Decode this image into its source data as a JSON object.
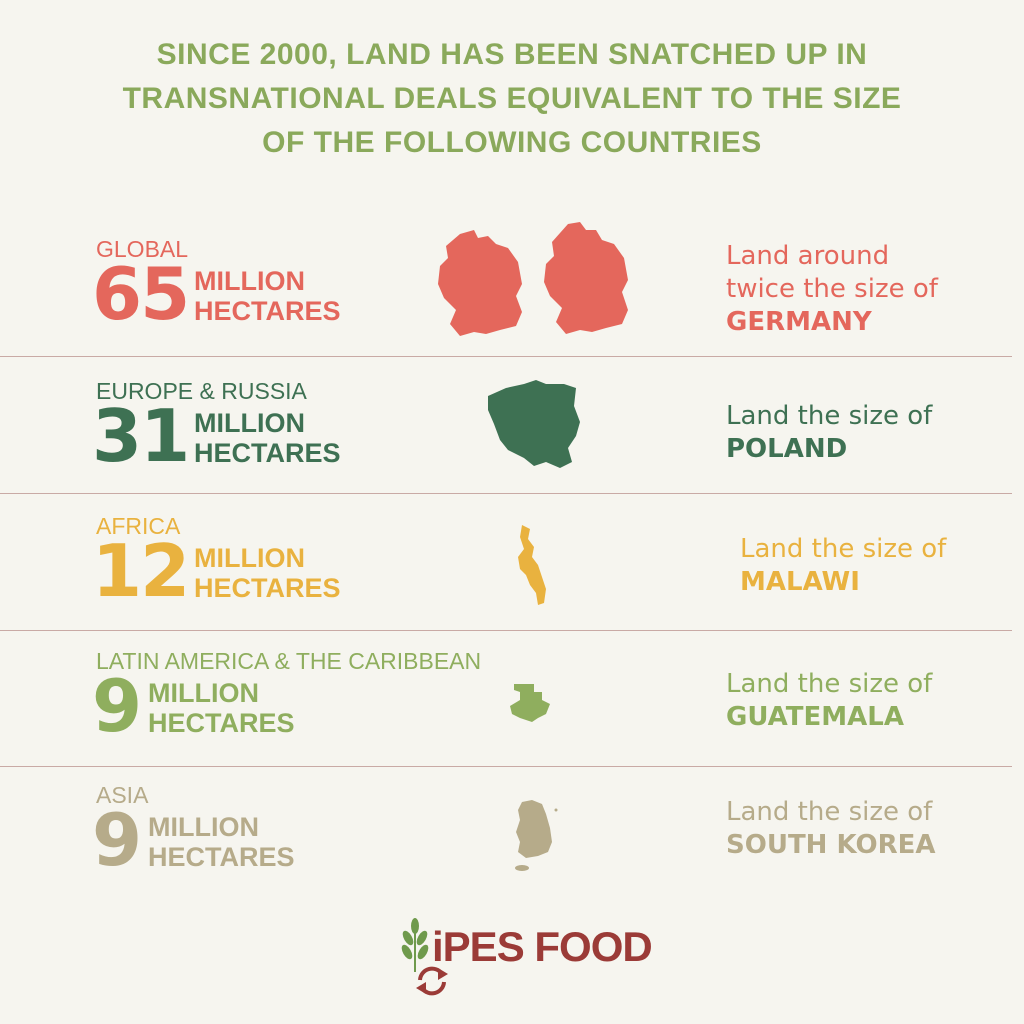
{
  "title": {
    "lines": [
      "SINCE 2000, LAND HAS BEEN SNATCHED UP IN",
      "TRANSNATIONAL DEALS EQUIVALENT TO THE SIZE",
      "OF THE FOLLOWING COUNTRIES"
    ],
    "color": "#8aa95b"
  },
  "rows": [
    {
      "region": "GLOBAL",
      "number": "65",
      "unit_line1": "MILLION",
      "unit_line2": "HECTARES",
      "desc_line1": "Land around",
      "desc_line2": "twice the size of",
      "country": "GERMANY",
      "map_icon": "germany-map-icon",
      "color": "#e4675c"
    },
    {
      "region": "EUROPE & RUSSIA",
      "number": "31",
      "unit_line1": "MILLION",
      "unit_line2": "HECTARES",
      "desc_line1": "Land the size of",
      "country": "POLAND",
      "map_icon": "poland-map-icon",
      "color": "#3e7153"
    },
    {
      "region": "AFRICA",
      "number": "12",
      "unit_line1": "MILLION",
      "unit_line2": "HECTARES",
      "desc_line1": "Land the size of",
      "country": "MALAWI",
      "map_icon": "malawi-map-icon",
      "color": "#e9b23f"
    },
    {
      "region": "LATIN AMERICA & THE CARIBBEAN",
      "number": "9",
      "unit_line1": "MILLION",
      "unit_line2": "HECTARES",
      "desc_line1": "Land the size of",
      "country": "GUATEMALA",
      "map_icon": "guatemala-map-icon",
      "color": "#8fae5e"
    },
    {
      "region": "ASIA",
      "number": "9",
      "unit_line1": "MILLION",
      "unit_line2": "HECTARES",
      "desc_line1": "Land the size of",
      "country": "SOUTH KOREA",
      "map_icon": "south-korea-map-icon",
      "color": "#b6ab8a"
    }
  ],
  "logo": {
    "text": "iPES FOOD",
    "color": "#9b3b37",
    "leaf_color": "#6f9a4c"
  }
}
